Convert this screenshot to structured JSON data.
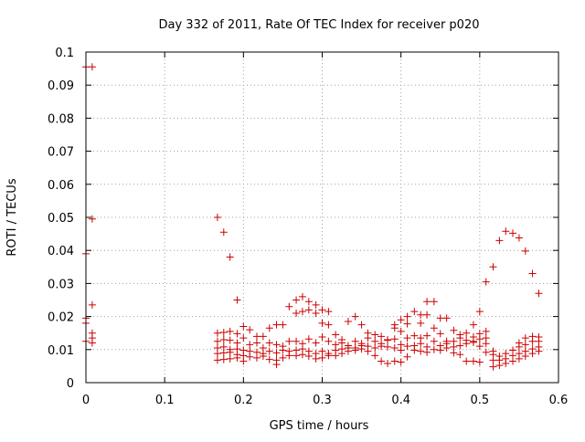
{
  "chart_data": {
    "type": "scatter",
    "title": "Day 332 of 2011, Rate Of TEC Index for receiver p020",
    "xlabel": "GPS time / hours",
    "ylabel": "ROTI / TECUs",
    "xlim": [
      0,
      0.6
    ],
    "ylim": [
      0,
      0.1
    ],
    "xticks": [
      0,
      0.1,
      0.2,
      0.3,
      0.4,
      0.5,
      0.6
    ],
    "yticks": [
      0,
      0.01,
      0.02,
      0.03,
      0.04,
      0.05,
      0.06,
      0.07,
      0.08,
      0.09,
      0.1
    ],
    "xtick_labels": [
      "0",
      "0.1",
      "0.2",
      "0.3",
      "0.4",
      "0.5",
      "0.6"
    ],
    "ytick_labels": [
      "0",
      "0.01",
      "0.02",
      "0.03",
      "0.04",
      "0.05",
      "0.06",
      "0.07",
      "0.08",
      "0.09",
      "0.1"
    ],
    "grid": true,
    "marker": "+",
    "color": "#cc0000",
    "series": [
      {
        "name": "ROTI",
        "points": [
          [
            0.0,
            0.0955
          ],
          [
            0.008,
            0.0955
          ],
          [
            0.008,
            0.0495
          ],
          [
            0.0,
            0.039
          ],
          [
            0.008,
            0.0235
          ],
          [
            0.0,
            0.0195
          ],
          [
            0.0,
            0.018
          ],
          [
            0.008,
            0.015
          ],
          [
            0.008,
            0.0135
          ],
          [
            0.0,
            0.0125
          ],
          [
            0.008,
            0.012
          ],
          [
            0.167,
            0.05
          ],
          [
            0.175,
            0.0455
          ],
          [
            0.183,
            0.038
          ],
          [
            0.192,
            0.025
          ],
          [
            0.167,
            0.015
          ],
          [
            0.175,
            0.0152
          ],
          [
            0.183,
            0.0155
          ],
          [
            0.192,
            0.0148
          ],
          [
            0.2,
            0.017
          ],
          [
            0.167,
            0.0125
          ],
          [
            0.175,
            0.013
          ],
          [
            0.183,
            0.0128
          ],
          [
            0.192,
            0.012
          ],
          [
            0.2,
            0.0135
          ],
          [
            0.167,
            0.0105
          ],
          [
            0.175,
            0.0108
          ],
          [
            0.183,
            0.01
          ],
          [
            0.192,
            0.0102
          ],
          [
            0.2,
            0.0098
          ],
          [
            0.167,
            0.0088
          ],
          [
            0.175,
            0.009
          ],
          [
            0.183,
            0.0092
          ],
          [
            0.192,
            0.0085
          ],
          [
            0.2,
            0.0082
          ],
          [
            0.167,
            0.0068
          ],
          [
            0.175,
            0.007
          ],
          [
            0.183,
            0.0072
          ],
          [
            0.192,
            0.0075
          ],
          [
            0.2,
            0.0065
          ],
          [
            0.208,
            0.016
          ],
          [
            0.217,
            0.014
          ],
          [
            0.225,
            0.014
          ],
          [
            0.233,
            0.0165
          ],
          [
            0.242,
            0.0175
          ],
          [
            0.25,
            0.0175
          ],
          [
            0.208,
            0.0115
          ],
          [
            0.217,
            0.012
          ],
          [
            0.225,
            0.0105
          ],
          [
            0.233,
            0.012
          ],
          [
            0.242,
            0.0115
          ],
          [
            0.25,
            0.011
          ],
          [
            0.208,
            0.0095
          ],
          [
            0.217,
            0.0092
          ],
          [
            0.225,
            0.0088
          ],
          [
            0.233,
            0.0095
          ],
          [
            0.242,
            0.009
          ],
          [
            0.25,
            0.0098
          ],
          [
            0.208,
            0.0078
          ],
          [
            0.217,
            0.0075
          ],
          [
            0.225,
            0.008
          ],
          [
            0.233,
            0.007
          ],
          [
            0.242,
            0.0068
          ],
          [
            0.25,
            0.0075
          ],
          [
            0.242,
            0.0055
          ],
          [
            0.258,
            0.023
          ],
          [
            0.258,
            0.0125
          ],
          [
            0.258,
            0.0095
          ],
          [
            0.258,
            0.0082
          ],
          [
            0.267,
            0.025
          ],
          [
            0.275,
            0.026
          ],
          [
            0.283,
            0.0245
          ],
          [
            0.292,
            0.0235
          ],
          [
            0.267,
            0.021
          ],
          [
            0.275,
            0.0215
          ],
          [
            0.283,
            0.022
          ],
          [
            0.292,
            0.021
          ],
          [
            0.3,
            0.022
          ],
          [
            0.308,
            0.0215
          ],
          [
            0.267,
            0.0125
          ],
          [
            0.275,
            0.0118
          ],
          [
            0.283,
            0.0132
          ],
          [
            0.292,
            0.012
          ],
          [
            0.3,
            0.0138
          ],
          [
            0.308,
            0.0125
          ],
          [
            0.267,
            0.0098
          ],
          [
            0.275,
            0.0102
          ],
          [
            0.283,
            0.0095
          ],
          [
            0.292,
            0.0088
          ],
          [
            0.3,
            0.0095
          ],
          [
            0.308,
            0.0088
          ],
          [
            0.267,
            0.0082
          ],
          [
            0.275,
            0.0085
          ],
          [
            0.283,
            0.008
          ],
          [
            0.292,
            0.0072
          ],
          [
            0.3,
            0.0075
          ],
          [
            0.308,
            0.0082
          ],
          [
            0.3,
            0.018
          ],
          [
            0.308,
            0.0175
          ],
          [
            0.317,
            0.0145
          ],
          [
            0.325,
            0.013
          ],
          [
            0.333,
            0.0185
          ],
          [
            0.342,
            0.02
          ],
          [
            0.35,
            0.0175
          ],
          [
            0.358,
            0.015
          ],
          [
            0.317,
            0.0115
          ],
          [
            0.325,
            0.012
          ],
          [
            0.333,
            0.0112
          ],
          [
            0.342,
            0.0125
          ],
          [
            0.35,
            0.0118
          ],
          [
            0.358,
            0.0135
          ],
          [
            0.317,
            0.0098
          ],
          [
            0.325,
            0.0102
          ],
          [
            0.333,
            0.0105
          ],
          [
            0.342,
            0.0098
          ],
          [
            0.35,
            0.0102
          ],
          [
            0.358,
            0.011
          ],
          [
            0.317,
            0.0082
          ],
          [
            0.325,
            0.0088
          ],
          [
            0.333,
            0.0095
          ],
          [
            0.342,
            0.0105
          ],
          [
            0.35,
            0.0112
          ],
          [
            0.358,
            0.0095
          ],
          [
            0.367,
            0.0145
          ],
          [
            0.375,
            0.014
          ],
          [
            0.383,
            0.013
          ],
          [
            0.392,
            0.0165
          ],
          [
            0.4,
            0.019
          ],
          [
            0.408,
            0.02
          ],
          [
            0.367,
            0.0125
          ],
          [
            0.375,
            0.0118
          ],
          [
            0.383,
            0.0128
          ],
          [
            0.392,
            0.0132
          ],
          [
            0.4,
            0.0115
          ],
          [
            0.408,
            0.0135
          ],
          [
            0.367,
            0.0105
          ],
          [
            0.375,
            0.011
          ],
          [
            0.383,
            0.0108
          ],
          [
            0.392,
            0.0105
          ],
          [
            0.4,
            0.0098
          ],
          [
            0.408,
            0.011
          ],
          [
            0.367,
            0.0082
          ],
          [
            0.375,
            0.0065
          ],
          [
            0.383,
            0.0058
          ],
          [
            0.392,
            0.0065
          ],
          [
            0.4,
            0.0062
          ],
          [
            0.408,
            0.0078
          ],
          [
            0.408,
            0.0178
          ],
          [
            0.4,
            0.0155
          ],
          [
            0.392,
            0.0175
          ],
          [
            0.417,
            0.0215
          ],
          [
            0.425,
            0.018
          ],
          [
            0.433,
            0.0245
          ],
          [
            0.442,
            0.0245
          ],
          [
            0.45,
            0.0195
          ],
          [
            0.458,
            0.0195
          ],
          [
            0.417,
            0.0142
          ],
          [
            0.425,
            0.0135
          ],
          [
            0.433,
            0.0142
          ],
          [
            0.442,
            0.0165
          ],
          [
            0.45,
            0.0148
          ],
          [
            0.458,
            0.0125
          ],
          [
            0.417,
            0.0112
          ],
          [
            0.425,
            0.0118
          ],
          [
            0.433,
            0.0108
          ],
          [
            0.442,
            0.0125
          ],
          [
            0.45,
            0.0112
          ],
          [
            0.458,
            0.0118
          ],
          [
            0.417,
            0.0098
          ],
          [
            0.425,
            0.0095
          ],
          [
            0.433,
            0.0092
          ],
          [
            0.442,
            0.01
          ],
          [
            0.45,
            0.0098
          ],
          [
            0.458,
            0.0105
          ],
          [
            0.433,
            0.0205
          ],
          [
            0.425,
            0.0205
          ],
          [
            0.467,
            0.0158
          ],
          [
            0.475,
            0.0145
          ],
          [
            0.483,
            0.015
          ],
          [
            0.492,
            0.0138
          ],
          [
            0.5,
            0.0148
          ],
          [
            0.508,
            0.0155
          ],
          [
            0.467,
            0.0125
          ],
          [
            0.475,
            0.0135
          ],
          [
            0.483,
            0.0128
          ],
          [
            0.492,
            0.0122
          ],
          [
            0.5,
            0.0132
          ],
          [
            0.508,
            0.0135
          ],
          [
            0.467,
            0.0108
          ],
          [
            0.475,
            0.0112
          ],
          [
            0.483,
            0.0118
          ],
          [
            0.492,
            0.0125
          ],
          [
            0.5,
            0.011
          ],
          [
            0.508,
            0.0118
          ],
          [
            0.467,
            0.009
          ],
          [
            0.475,
            0.0085
          ],
          [
            0.483,
            0.0065
          ],
          [
            0.492,
            0.0065
          ],
          [
            0.5,
            0.0062
          ],
          [
            0.508,
            0.0092
          ],
          [
            0.492,
            0.0175
          ],
          [
            0.5,
            0.0215
          ],
          [
            0.508,
            0.0305
          ],
          [
            0.517,
            0.035
          ],
          [
            0.517,
            0.0095
          ],
          [
            0.517,
            0.0085
          ],
          [
            0.517,
            0.0068
          ],
          [
            0.517,
            0.0048
          ],
          [
            0.525,
            0.043
          ],
          [
            0.533,
            0.0458
          ],
          [
            0.542,
            0.0452
          ],
          [
            0.55,
            0.0438
          ],
          [
            0.558,
            0.0398
          ],
          [
            0.567,
            0.033
          ],
          [
            0.575,
            0.027
          ],
          [
            0.525,
            0.008
          ],
          [
            0.533,
            0.0088
          ],
          [
            0.542,
            0.0098
          ],
          [
            0.55,
            0.0108
          ],
          [
            0.558,
            0.0115
          ],
          [
            0.567,
            0.0125
          ],
          [
            0.575,
            0.0138
          ],
          [
            0.525,
            0.0068
          ],
          [
            0.533,
            0.0072
          ],
          [
            0.542,
            0.0082
          ],
          [
            0.55,
            0.0088
          ],
          [
            0.558,
            0.0095
          ],
          [
            0.567,
            0.0102
          ],
          [
            0.575,
            0.0108
          ],
          [
            0.525,
            0.0052
          ],
          [
            0.533,
            0.0058
          ],
          [
            0.542,
            0.0065
          ],
          [
            0.55,
            0.0072
          ],
          [
            0.558,
            0.008
          ],
          [
            0.567,
            0.0088
          ],
          [
            0.575,
            0.0095
          ],
          [
            0.55,
            0.012
          ],
          [
            0.558,
            0.0135
          ],
          [
            0.567,
            0.014
          ],
          [
            0.575,
            0.0125
          ]
        ]
      }
    ]
  }
}
